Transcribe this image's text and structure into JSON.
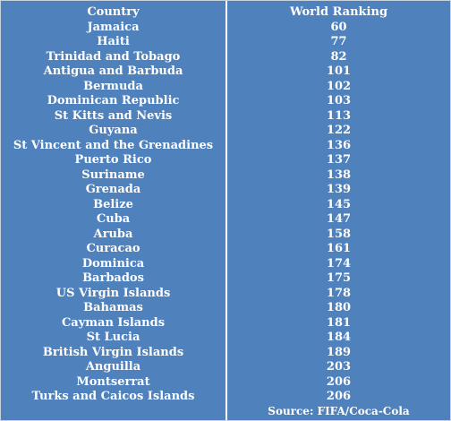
{
  "table": {
    "headers": [
      "Country",
      "World Ranking"
    ],
    "rows": [
      [
        "Jamaica",
        "60"
      ],
      [
        "Haiti",
        "77"
      ],
      [
        "Trinidad and Tobago",
        "82"
      ],
      [
        "Antigua and Barbuda",
        "101"
      ],
      [
        "Bermuda",
        "102"
      ],
      [
        "Dominican Republic",
        "103"
      ],
      [
        "St Kitts and Nevis",
        "113"
      ],
      [
        "Guyana",
        "122"
      ],
      [
        "St Vincent and the Grenadines",
        "136"
      ],
      [
        "Puerto Rico",
        "137"
      ],
      [
        "Suriname",
        "138"
      ],
      [
        "Grenada",
        "139"
      ],
      [
        "Belize",
        "145"
      ],
      [
        "Cuba",
        "147"
      ],
      [
        "Aruba",
        "158"
      ],
      [
        "Curacao",
        "161"
      ],
      [
        "Dominica",
        "174"
      ],
      [
        "Barbados",
        "175"
      ],
      [
        "US Virgin Islands",
        "178"
      ],
      [
        "Bahamas",
        "180"
      ],
      [
        "Cayman Islands",
        "181"
      ],
      [
        "St Lucia",
        "184"
      ],
      [
        "British Virgin Islands",
        "189"
      ],
      [
        "Anguilla",
        "203"
      ],
      [
        "Montserrat",
        "206"
      ],
      [
        "Turks and Caicos Islands",
        "206"
      ]
    ],
    "source": "Source: FIFA/Coca-Cola"
  },
  "colors": {
    "background": "#4f81bd",
    "text": "#ffffff",
    "divider": "#ffffff"
  }
}
